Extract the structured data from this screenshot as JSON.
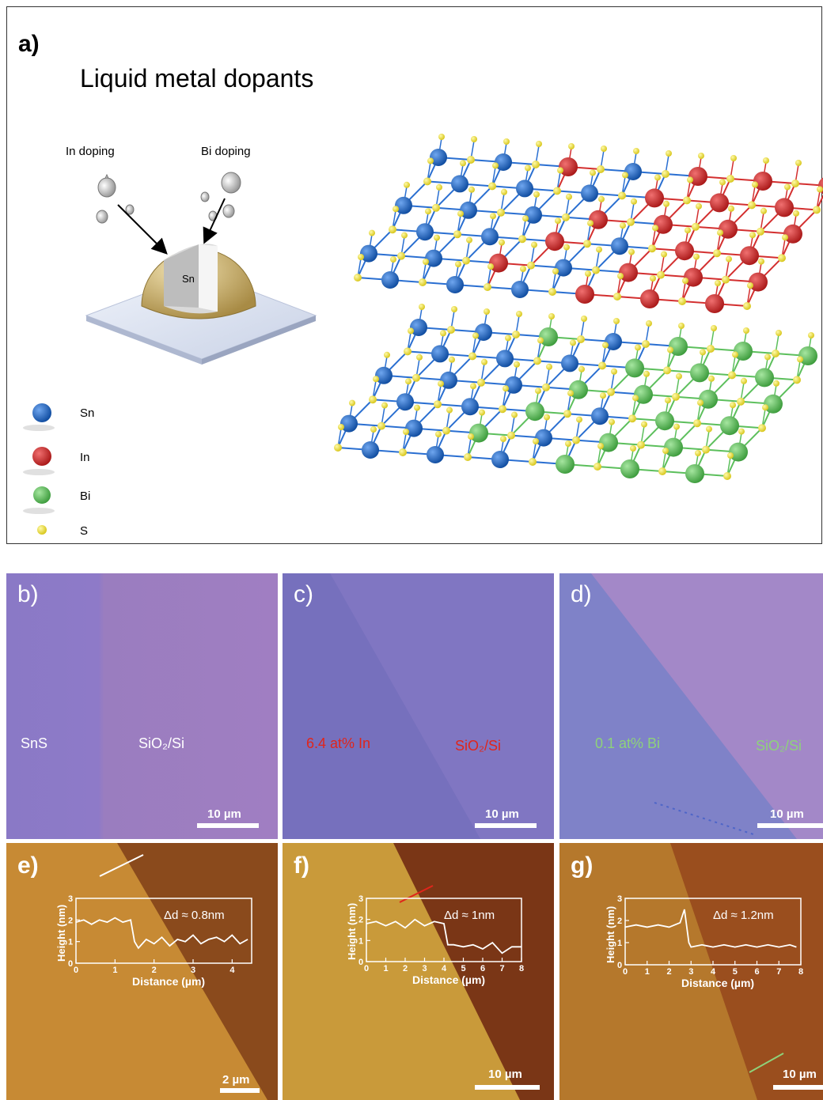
{
  "panel_a": {
    "letter": "a)",
    "title": "Liquid metal dopants",
    "in_doping": "In doping",
    "bi_doping": "Bi doping",
    "core_label": "Sn",
    "legend": [
      {
        "label": "Sn",
        "color": "#1a5fb4"
      },
      {
        "label": "In",
        "color": "#d32f2f"
      },
      {
        "label": "Bi",
        "color": "#5cbf5c"
      },
      {
        "label": "S",
        "color": "#f2e63b"
      }
    ]
  },
  "panel_b": {
    "letter": "b)",
    "left_label": "SnS",
    "right_label": "SiO₂/Si",
    "scale": "10 µm",
    "label_color": "#ffffff"
  },
  "panel_c": {
    "letter": "c)",
    "left_label": "6.4 at% In",
    "right_label": "SiO₂/Si",
    "scale": "10 µm",
    "label_color": "#e0251b"
  },
  "panel_d": {
    "letter": "d)",
    "left_label": "0.1 at% Bi",
    "right_label": "SiO₂/Si",
    "scale": "10 µm",
    "label_color": "#8ed27a"
  },
  "panel_e": {
    "letter": "e)",
    "annotation": "Δd ≈ 0.8nm",
    "scale": "2 µm",
    "xlabel": "Distance (µm)",
    "ylabel": "Height (nm)",
    "xticks": [
      "0",
      "1",
      "2",
      "3",
      "4"
    ],
    "yticks": [
      "0",
      "1",
      "2",
      "3"
    ]
  },
  "panel_f": {
    "letter": "f)",
    "annotation": "Δd ≈ 1nm",
    "scale": "10 µm",
    "xlabel": "Distance (µm)",
    "ylabel": "Height (nm)",
    "xticks": [
      "0",
      "1",
      "2",
      "3",
      "4",
      "5",
      "6",
      "7",
      "8"
    ],
    "yticks": [
      "0",
      "1",
      "2",
      "3"
    ]
  },
  "panel_g": {
    "letter": "g)",
    "annotation": "Δd ≈ 1.2nm",
    "scale": "10 µm",
    "xlabel": "Distance (µm)",
    "ylabel": "Height (nm)",
    "xticks": [
      "0",
      "1",
      "2",
      "3",
      "4",
      "5",
      "6",
      "7",
      "8"
    ],
    "yticks": [
      "0",
      "1",
      "2",
      "3"
    ]
  },
  "chart_data": [
    {
      "type": "line",
      "panel": "e",
      "xlabel": "Distance (µm)",
      "ylabel": "Height (nm)",
      "xlim": [
        0,
        4.5
      ],
      "ylim": [
        0,
        3
      ],
      "series": [
        {
          "x": [
            0,
            0.2,
            0.4,
            0.6,
            0.8,
            1.0,
            1.2,
            1.4,
            1.5,
            1.6,
            1.8,
            2.0,
            2.2,
            2.4,
            2.6,
            2.8,
            3.0,
            3.2,
            3.4,
            3.6,
            3.8,
            4.0,
            4.2,
            4.4
          ],
          "y": [
            1.9,
            2.0,
            1.8,
            2.0,
            1.9,
            2.1,
            1.9,
            2.0,
            1.0,
            0.7,
            1.1,
            0.9,
            1.2,
            0.8,
            1.1,
            1.0,
            1.3,
            0.9,
            1.1,
            1.2,
            1.0,
            1.3,
            0.9,
            1.1
          ]
        }
      ]
    },
    {
      "type": "line",
      "panel": "f",
      "xlabel": "Distance (µm)",
      "ylabel": "Height (nm)",
      "xlim": [
        0,
        8
      ],
      "ylim": [
        0,
        3
      ],
      "series": [
        {
          "x": [
            0,
            0.5,
            1,
            1.5,
            2,
            2.5,
            3,
            3.5,
            4,
            4.2,
            4.5,
            5,
            5.5,
            6,
            6.5,
            7,
            7.5,
            8
          ],
          "y": [
            1.8,
            1.9,
            1.7,
            1.9,
            1.6,
            2.0,
            1.7,
            1.9,
            1.8,
            0.8,
            0.8,
            0.7,
            0.8,
            0.6,
            0.9,
            0.4,
            0.7,
            0.7
          ]
        }
      ]
    },
    {
      "type": "line",
      "panel": "g",
      "xlabel": "Distance (µm)",
      "ylabel": "Height (nm)",
      "xlim": [
        0,
        8
      ],
      "ylim": [
        0,
        3
      ],
      "series": [
        {
          "x": [
            0,
            0.5,
            1,
            1.5,
            2,
            2.5,
            2.7,
            2.9,
            3,
            3.5,
            4,
            4.5,
            5,
            5.5,
            6,
            6.5,
            7,
            7.5,
            7.8
          ],
          "y": [
            1.7,
            1.8,
            1.7,
            1.8,
            1.7,
            1.9,
            2.5,
            1.0,
            0.8,
            0.9,
            0.8,
            0.9,
            0.8,
            0.9,
            0.8,
            0.9,
            0.8,
            0.9,
            0.8
          ]
        }
      ]
    }
  ]
}
